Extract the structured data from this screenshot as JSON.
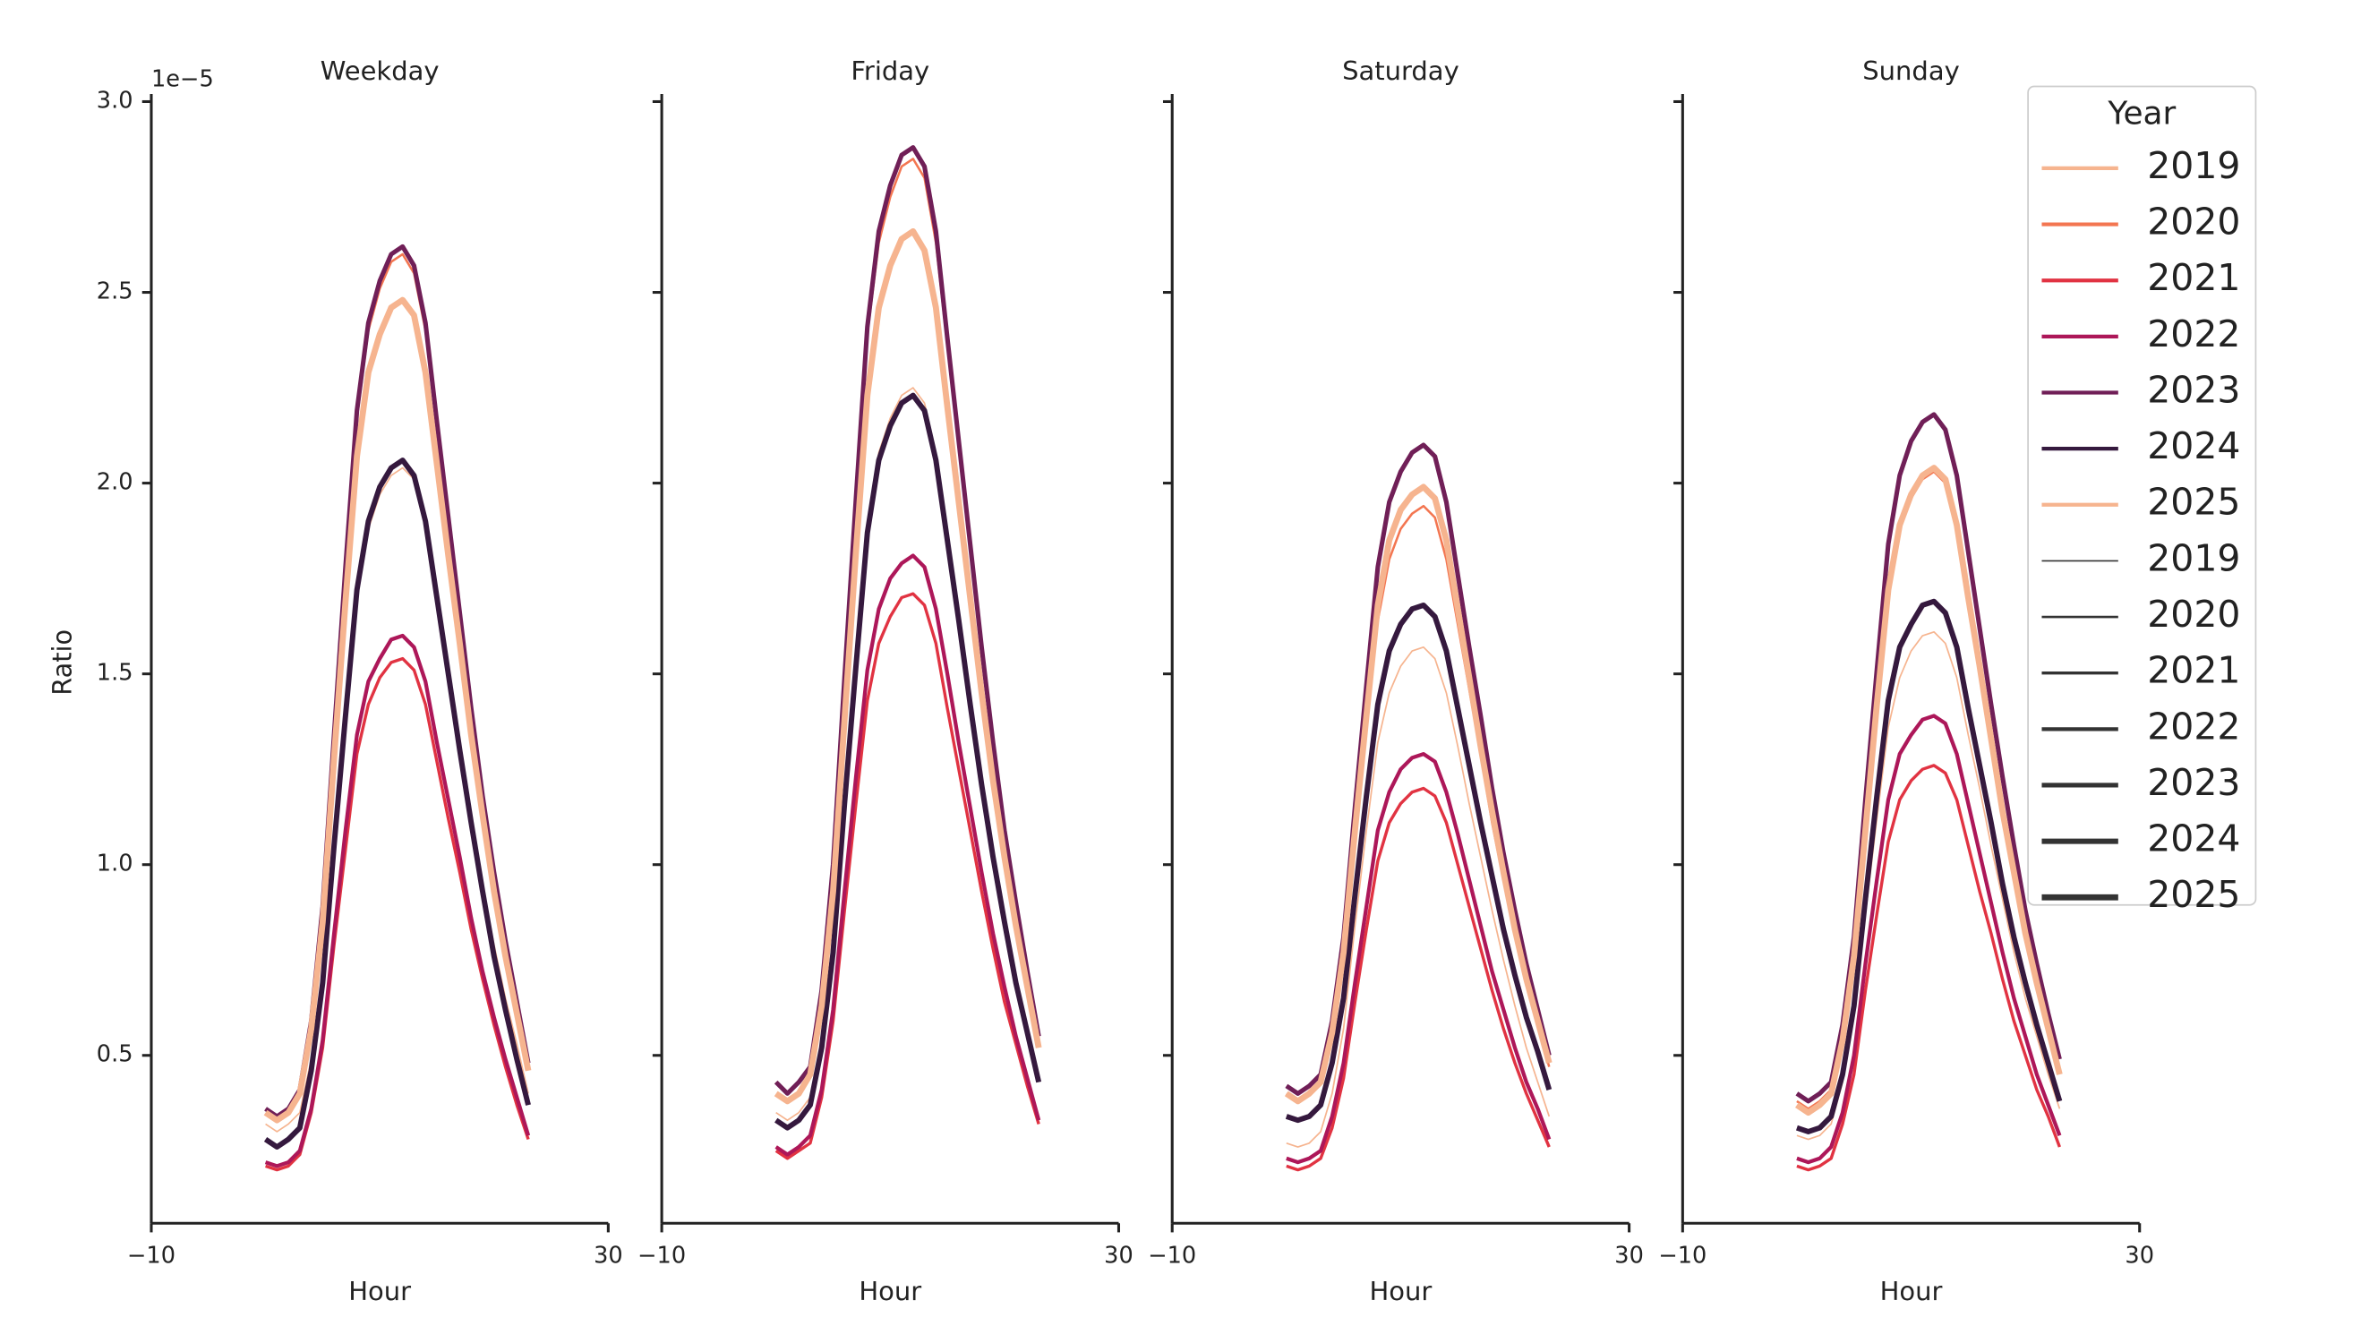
{
  "chart_data": [
    {
      "type": "line",
      "title": "Weekday",
      "xlabel": "Hour",
      "ylabel": "Ratio",
      "y_offset_label": "1e−5",
      "x": [
        0,
        1,
        2,
        3,
        4,
        5,
        6,
        7,
        8,
        9,
        10,
        11,
        12,
        13,
        14,
        15,
        16,
        17,
        18,
        19,
        20,
        21,
        22,
        23
      ],
      "xlim": [
        -10,
        30
      ],
      "xticks": [
        {
          "value": -10,
          "label": "−10"
        },
        30
      ],
      "ylim": [
        0.06,
        3.02
      ],
      "yticks": [
        0.5,
        {
          "value": 1,
          "label": "1.0"
        },
        1.5,
        {
          "value": 2,
          "label": "2.0"
        },
        2.5,
        {
          "value": 3,
          "label": "3.0"
        }
      ],
      "series": [
        {
          "name": "2019",
          "color": "#f6b48f",
          "linewidth": 1,
          "values": [
            0.32,
            0.3,
            0.32,
            0.35,
            0.49,
            0.72,
            1.07,
            1.4,
            1.71,
            1.88,
            1.97,
            2.02,
            2.04,
            2.01,
            1.88,
            1.69,
            1.5,
            1.31,
            1.12,
            0.94,
            0.79,
            0.65,
            0.53,
            0.4
          ]
        },
        {
          "name": "2020",
          "color": "#f37651",
          "linewidth": 1.5,
          "values": [
            0.36,
            0.34,
            0.36,
            0.41,
            0.59,
            0.88,
            1.33,
            1.76,
            2.17,
            2.4,
            2.51,
            2.58,
            2.6,
            2.55,
            2.4,
            2.15,
            1.9,
            1.65,
            1.4,
            1.18,
            0.97,
            0.79,
            0.63,
            0.48
          ]
        },
        {
          "name": "2021",
          "color": "#e13342",
          "linewidth": 2,
          "values": [
            0.21,
            0.2,
            0.21,
            0.24,
            0.35,
            0.52,
            0.79,
            1.04,
            1.29,
            1.42,
            1.49,
            1.53,
            1.54,
            1.51,
            1.42,
            1.27,
            1.12,
            0.98,
            0.83,
            0.7,
            0.58,
            0.47,
            0.37,
            0.28
          ]
        },
        {
          "name": "2022",
          "color": "#ad1759",
          "linewidth": 2.5,
          "values": [
            0.22,
            0.21,
            0.22,
            0.25,
            0.36,
            0.54,
            0.82,
            1.09,
            1.34,
            1.48,
            1.54,
            1.59,
            1.6,
            1.57,
            1.48,
            1.32,
            1.17,
            1.02,
            0.86,
            0.72,
            0.6,
            0.49,
            0.39,
            0.29
          ]
        },
        {
          "name": "2023",
          "color": "#701f57",
          "linewidth": 3,
          "values": [
            0.36,
            0.34,
            0.36,
            0.41,
            0.59,
            0.89,
            1.34,
            1.78,
            2.19,
            2.42,
            2.53,
            2.6,
            2.62,
            2.57,
            2.42,
            2.16,
            1.91,
            1.66,
            1.41,
            1.18,
            0.98,
            0.8,
            0.64,
            0.48
          ]
        },
        {
          "name": "2024",
          "color": "#35193e",
          "linewidth": 3.5,
          "values": [
            0.28,
            0.26,
            0.28,
            0.31,
            0.46,
            0.69,
            1.05,
            1.39,
            1.72,
            1.9,
            1.99,
            2.04,
            2.06,
            2.02,
            1.9,
            1.7,
            1.5,
            1.3,
            1.11,
            0.93,
            0.76,
            0.62,
            0.49,
            0.37
          ]
        },
        {
          "name": "2025",
          "color": "#f6b48f",
          "linewidth": 4,
          "values": [
            0.35,
            0.33,
            0.35,
            0.4,
            0.57,
            0.85,
            1.28,
            1.69,
            2.07,
            2.29,
            2.39,
            2.46,
            2.48,
            2.44,
            2.29,
            2.05,
            1.81,
            1.58,
            1.34,
            1.13,
            0.93,
            0.76,
            0.61,
            0.46
          ]
        }
      ]
    },
    {
      "type": "line",
      "title": "Friday",
      "xlabel": "Hour",
      "x": [
        0,
        1,
        2,
        3,
        4,
        5,
        6,
        7,
        8,
        9,
        10,
        11,
        12,
        13,
        14,
        15,
        16,
        17,
        18,
        19,
        20,
        21,
        22,
        23
      ],
      "xlim": [
        -10,
        30
      ],
      "xticks": [
        {
          "value": -10,
          "label": "−10"
        },
        30
      ],
      "ylim": [
        0.06,
        3.02
      ],
      "series": [
        {
          "name": "2019",
          "color": "#f6b48f",
          "linewidth": 1,
          "values": [
            0.35,
            0.33,
            0.35,
            0.39,
            0.54,
            0.79,
            1.18,
            1.54,
            1.89,
            2.08,
            2.17,
            2.23,
            2.25,
            2.21,
            2.08,
            1.87,
            1.66,
            1.44,
            1.23,
            1.04,
            0.87,
            0.71,
            0.58,
            0.45
          ]
        },
        {
          "name": "2020",
          "color": "#f37651",
          "linewidth": 1.5,
          "values": [
            0.43,
            0.4,
            0.43,
            0.47,
            0.67,
            0.99,
            1.48,
            1.94,
            2.39,
            2.63,
            2.75,
            2.83,
            2.85,
            2.8,
            2.63,
            2.36,
            2.09,
            1.82,
            1.55,
            1.31,
            1.09,
            0.89,
            0.72,
            0.55
          ]
        },
        {
          "name": "2021",
          "color": "#e13342",
          "linewidth": 2,
          "values": [
            0.25,
            0.23,
            0.25,
            0.27,
            0.39,
            0.59,
            0.88,
            1.16,
            1.43,
            1.58,
            1.65,
            1.7,
            1.71,
            1.68,
            1.58,
            1.41,
            1.25,
            1.09,
            0.93,
            0.78,
            0.64,
            0.53,
            0.42,
            0.32
          ]
        },
        {
          "name": "2022",
          "color": "#ad1759",
          "linewidth": 2.5,
          "values": [
            0.26,
            0.24,
            0.26,
            0.29,
            0.41,
            0.62,
            0.93,
            1.23,
            1.51,
            1.67,
            1.75,
            1.79,
            1.81,
            1.78,
            1.67,
            1.5,
            1.32,
            1.15,
            0.98,
            0.82,
            0.68,
            0.55,
            0.44,
            0.33
          ]
        },
        {
          "name": "2023",
          "color": "#701f57",
          "linewidth": 3,
          "values": [
            0.43,
            0.4,
            0.43,
            0.47,
            0.67,
            1.0,
            1.49,
            1.96,
            2.41,
            2.66,
            2.78,
            2.86,
            2.88,
            2.83,
            2.66,
            2.38,
            2.11,
            1.84,
            1.57,
            1.32,
            1.09,
            0.9,
            0.72,
            0.55
          ]
        },
        {
          "name": "2024",
          "color": "#35193e",
          "linewidth": 3.5,
          "values": [
            0.33,
            0.31,
            0.33,
            0.37,
            0.52,
            0.77,
            1.16,
            1.52,
            1.87,
            2.06,
            2.15,
            2.21,
            2.23,
            2.19,
            2.06,
            1.85,
            1.64,
            1.42,
            1.21,
            1.02,
            0.85,
            0.69,
            0.56,
            0.43
          ]
        },
        {
          "name": "2025",
          "color": "#f6b48f",
          "linewidth": 4,
          "values": [
            0.4,
            0.38,
            0.4,
            0.45,
            0.63,
            0.93,
            1.38,
            1.82,
            2.23,
            2.46,
            2.57,
            2.64,
            2.66,
            2.61,
            2.46,
            2.2,
            1.95,
            1.7,
            1.45,
            1.22,
            1.02,
            0.84,
            0.68,
            0.52
          ]
        }
      ]
    },
    {
      "type": "line",
      "title": "Saturday",
      "xlabel": "Hour",
      "x": [
        0,
        1,
        2,
        3,
        4,
        5,
        6,
        7,
        8,
        9,
        10,
        11,
        12,
        13,
        14,
        15,
        16,
        17,
        18,
        19,
        20,
        21,
        22,
        23
      ],
      "xlim": [
        -10,
        30
      ],
      "xticks": [
        {
          "value": -10,
          "label": "−10"
        },
        30
      ],
      "ylim": [
        0.06,
        3.02
      ],
      "series": [
        {
          "name": "2019",
          "color": "#f6b48f",
          "linewidth": 1,
          "values": [
            0.27,
            0.26,
            0.27,
            0.3,
            0.4,
            0.57,
            0.84,
            1.09,
            1.32,
            1.45,
            1.52,
            1.56,
            1.57,
            1.54,
            1.45,
            1.31,
            1.16,
            1.02,
            0.88,
            0.75,
            0.63,
            0.52,
            0.43,
            0.34
          ]
        },
        {
          "name": "2020",
          "color": "#f37651",
          "linewidth": 1.5,
          "values": [
            0.4,
            0.38,
            0.4,
            0.43,
            0.55,
            0.75,
            1.07,
            1.36,
            1.64,
            1.8,
            1.88,
            1.92,
            1.94,
            1.91,
            1.8,
            1.63,
            1.46,
            1.29,
            1.11,
            0.96,
            0.82,
            0.69,
            0.58,
            0.47
          ]
        },
        {
          "name": "2021",
          "color": "#e13342",
          "linewidth": 2,
          "values": [
            0.21,
            0.2,
            0.21,
            0.23,
            0.31,
            0.44,
            0.64,
            0.83,
            1.01,
            1.11,
            1.16,
            1.19,
            1.2,
            1.18,
            1.11,
            1.0,
            0.89,
            0.78,
            0.67,
            0.57,
            0.48,
            0.4,
            0.33,
            0.26
          ]
        },
        {
          "name": "2022",
          "color": "#ad1759",
          "linewidth": 2.5,
          "values": [
            0.23,
            0.22,
            0.23,
            0.25,
            0.34,
            0.48,
            0.69,
            0.89,
            1.09,
            1.19,
            1.25,
            1.28,
            1.29,
            1.27,
            1.19,
            1.08,
            0.96,
            0.84,
            0.72,
            0.62,
            0.52,
            0.43,
            0.36,
            0.28
          ]
        },
        {
          "name": "2023",
          "color": "#701f57",
          "linewidth": 3,
          "values": [
            0.42,
            0.4,
            0.42,
            0.45,
            0.59,
            0.81,
            1.15,
            1.47,
            1.78,
            1.95,
            2.03,
            2.08,
            2.1,
            2.07,
            1.95,
            1.76,
            1.57,
            1.39,
            1.2,
            1.03,
            0.88,
            0.74,
            0.62,
            0.5
          ]
        },
        {
          "name": "2024",
          "color": "#35193e",
          "linewidth": 3.5,
          "values": [
            0.34,
            0.33,
            0.34,
            0.37,
            0.48,
            0.65,
            0.92,
            1.18,
            1.42,
            1.56,
            1.63,
            1.67,
            1.68,
            1.65,
            1.56,
            1.41,
            1.26,
            1.11,
            0.97,
            0.83,
            0.71,
            0.6,
            0.51,
            0.41
          ]
        },
        {
          "name": "2025",
          "color": "#f6b48f",
          "linewidth": 4,
          "values": [
            0.4,
            0.38,
            0.4,
            0.43,
            0.56,
            0.77,
            1.09,
            1.39,
            1.68,
            1.85,
            1.93,
            1.97,
            1.99,
            1.96,
            1.85,
            1.67,
            1.49,
            1.31,
            1.14,
            0.98,
            0.83,
            0.7,
            0.59,
            0.48
          ]
        }
      ]
    },
    {
      "type": "line",
      "title": "Sunday",
      "xlabel": "Hour",
      "x": [
        0,
        1,
        2,
        3,
        4,
        5,
        6,
        7,
        8,
        9,
        10,
        11,
        12,
        13,
        14,
        15,
        16,
        17,
        18,
        19,
        20,
        21,
        22,
        23
      ],
      "xlim": [
        -10,
        30
      ],
      "xticks": [
        {
          "value": -10,
          "label": "−10"
        },
        30
      ],
      "ylim": [
        0.06,
        3.02
      ],
      "series": [
        {
          "name": "2019",
          "color": "#f6b48f",
          "linewidth": 1,
          "values": [
            0.29,
            0.28,
            0.29,
            0.32,
            0.43,
            0.6,
            0.87,
            1.12,
            1.36,
            1.49,
            1.56,
            1.6,
            1.61,
            1.58,
            1.49,
            1.34,
            1.2,
            1.05,
            0.91,
            0.77,
            0.65,
            0.55,
            0.45,
            0.36
          ]
        },
        {
          "name": "2020",
          "color": "#f37651",
          "linewidth": 1.5,
          "values": [
            0.38,
            0.36,
            0.38,
            0.41,
            0.54,
            0.76,
            1.1,
            1.41,
            1.71,
            1.88,
            1.96,
            2.01,
            2.03,
            2.0,
            1.88,
            1.7,
            1.51,
            1.33,
            1.15,
            0.98,
            0.83,
            0.69,
            0.58,
            0.46
          ]
        },
        {
          "name": "2021",
          "color": "#e13342",
          "linewidth": 2,
          "values": [
            0.21,
            0.2,
            0.21,
            0.23,
            0.32,
            0.45,
            0.67,
            0.87,
            1.06,
            1.17,
            1.22,
            1.25,
            1.26,
            1.24,
            1.17,
            1.05,
            0.93,
            0.82,
            0.7,
            0.59,
            0.5,
            0.41,
            0.34,
            0.26
          ]
        },
        {
          "name": "2022",
          "color": "#ad1759",
          "linewidth": 2.5,
          "values": [
            0.23,
            0.22,
            0.23,
            0.26,
            0.35,
            0.5,
            0.74,
            0.96,
            1.17,
            1.29,
            1.34,
            1.38,
            1.39,
            1.37,
            1.29,
            1.16,
            1.03,
            0.9,
            0.77,
            0.65,
            0.55,
            0.45,
            0.37,
            0.29
          ]
        },
        {
          "name": "2023",
          "color": "#701f57",
          "linewidth": 3,
          "values": [
            0.4,
            0.38,
            0.4,
            0.43,
            0.58,
            0.81,
            1.17,
            1.51,
            1.84,
            2.02,
            2.11,
            2.16,
            2.18,
            2.14,
            2.02,
            1.82,
            1.62,
            1.42,
            1.23,
            1.05,
            0.88,
            0.74,
            0.61,
            0.49
          ]
        },
        {
          "name": "2024",
          "color": "#35193e",
          "linewidth": 3.5,
          "values": [
            0.31,
            0.3,
            0.31,
            0.34,
            0.45,
            0.63,
            0.91,
            1.18,
            1.43,
            1.57,
            1.63,
            1.68,
            1.69,
            1.66,
            1.57,
            1.41,
            1.26,
            1.11,
            0.95,
            0.81,
            0.69,
            0.58,
            0.48,
            0.38
          ]
        },
        {
          "name": "2025",
          "color": "#f6b48f",
          "linewidth": 4,
          "values": [
            0.37,
            0.35,
            0.37,
            0.4,
            0.54,
            0.76,
            1.09,
            1.42,
            1.72,
            1.89,
            1.97,
            2.02,
            2.04,
            2.01,
            1.89,
            1.7,
            1.52,
            1.33,
            1.14,
            0.98,
            0.82,
            0.69,
            0.57,
            0.45
          ]
        }
      ]
    }
  ],
  "legend": {
    "title": "Year",
    "corner": "upper right",
    "size_entries": [
      "2019",
      "2020",
      "2021",
      "2022",
      "2023",
      "2024",
      "2025"
    ],
    "size_color": "#333333"
  }
}
